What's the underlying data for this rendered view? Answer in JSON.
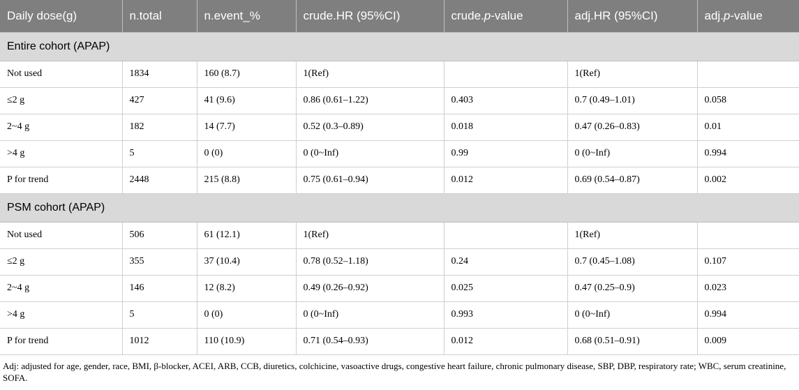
{
  "table": {
    "columns": [
      {
        "pre": "Daily dose(g)",
        "em": "",
        "post": ""
      },
      {
        "pre": "n.total",
        "em": "",
        "post": ""
      },
      {
        "pre": "n.event_%",
        "em": "",
        "post": ""
      },
      {
        "pre": "crude.HR (95%CI)",
        "em": "",
        "post": ""
      },
      {
        "pre": "crude.",
        "em": "p",
        "post": "-value"
      },
      {
        "pre": "adj.HR (95%CI)",
        "em": "",
        "post": ""
      },
      {
        "pre": "adj.",
        "em": "p",
        "post": "-value"
      }
    ],
    "sections": [
      {
        "title": "Entire cohort (APAP)",
        "rows": [
          [
            "Not used",
            "1834",
            "160 (8.7)",
            "1(Ref)",
            "",
            "1(Ref)",
            ""
          ],
          [
            "≤2 g",
            "427",
            "41 (9.6)",
            "0.86 (0.61–1.22)",
            "0.403",
            "0.7 (0.49–1.01)",
            "0.058"
          ],
          [
            "2~4 g",
            "182",
            "14 (7.7)",
            "0.52 (0.3–0.89)",
            "0.018",
            "0.47 (0.26–0.83)",
            "0.01"
          ],
          [
            ">4 g",
            "5",
            "0 (0)",
            "0 (0~Inf)",
            "0.99",
            "0 (0~Inf)",
            "0.994"
          ],
          [
            "P for trend",
            "2448",
            "215 (8.8)",
            "0.75 (0.61–0.94)",
            "0.012",
            "0.69 (0.54–0.87)",
            "0.002"
          ]
        ]
      },
      {
        "title": "PSM cohort (APAP)",
        "rows": [
          [
            "Not used",
            "506",
            "61 (12.1)",
            "1(Ref)",
            "",
            "1(Ref)",
            ""
          ],
          [
            "≤2 g",
            "355",
            "37 (10.4)",
            "0.78 (0.52–1.18)",
            "0.24",
            "0.7 (0.45–1.08)",
            "0.107"
          ],
          [
            "2~4 g",
            "146",
            "12 (8.2)",
            "0.49 (0.26–0.92)",
            "0.025",
            "0.47 (0.25–0.9)",
            "0.023"
          ],
          [
            ">4 g",
            "5",
            "0 (0)",
            "0 (0~Inf)",
            "0.993",
            "0 (0~Inf)",
            "0.994"
          ],
          [
            "P for trend",
            "1012",
            "110 (10.9)",
            "0.71 (0.54–0.93)",
            "0.012",
            "0.68 (0.51–0.91)",
            "0.009"
          ]
        ]
      }
    ]
  },
  "footnote": "Adj: adjusted for age, gender, race, BMI, β-blocker, ACEI, ARB, CCB, diuretics, colchicine, vasoactive drugs, congestive heart failure, chronic pulmonary disease, SBP, DBP, respiratory rate; WBC, serum creatinine, SOFA."
}
